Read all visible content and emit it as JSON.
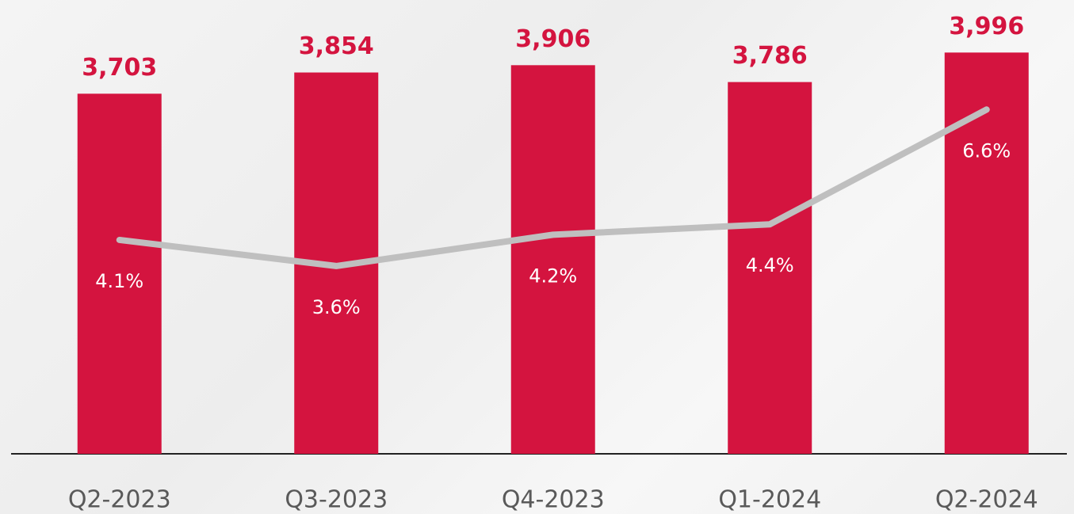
{
  "chart_data": {
    "type": "bar",
    "categories": [
      "Q2-2023",
      "Q3-2023",
      "Q4-2023",
      "Q1-2024",
      "Q2-2024"
    ],
    "series": [
      {
        "type": "bar",
        "color": "#d4143f",
        "values": [
          3703,
          3854,
          3906,
          3786,
          3996
        ],
        "value_labels": [
          "3,703",
          "3,854",
          "3,906",
          "3,786",
          "3,996"
        ]
      },
      {
        "type": "line",
        "axis": "y2",
        "color": "#bfbfbf",
        "values": [
          4.1,
          3.6,
          4.2,
          4.4,
          6.6
        ],
        "value_labels": [
          "4.1%",
          "3.6%",
          "4.2%",
          "4.4%",
          "6.6%"
        ]
      }
    ],
    "ylim": [
      1140,
      4370
    ],
    "y2lim": [
      0,
      8.7
    ]
  }
}
